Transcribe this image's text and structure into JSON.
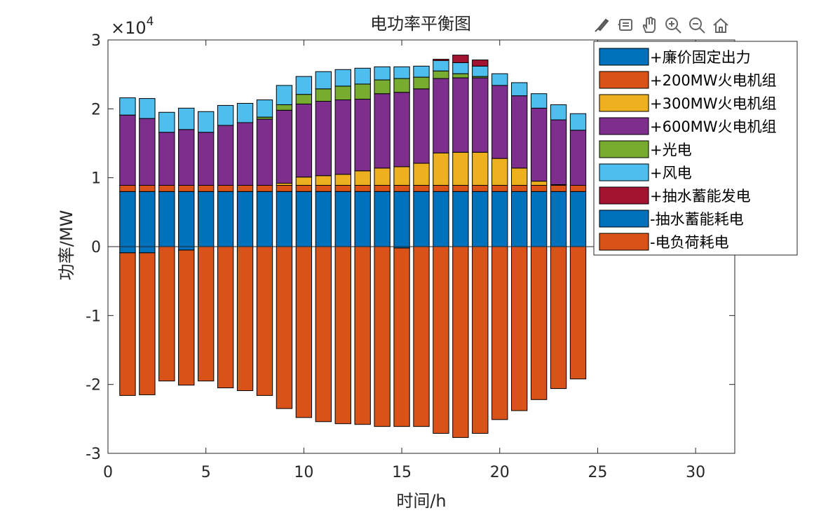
{
  "chart_data": {
    "type": "bar",
    "stacked": true,
    "title": "电功率平衡图",
    "xlabel": "时间/h",
    "ylabel": "功率/MW",
    "exponent_label": "×10",
    "exponent_power": "4",
    "xlim": [
      0,
      32
    ],
    "ylim": [
      -30000,
      30000
    ],
    "xticks": [
      0,
      5,
      10,
      15,
      20,
      25,
      30
    ],
    "yticks": [
      -30000,
      -20000,
      -10000,
      0,
      10000,
      20000,
      30000
    ],
    "xtick_labels": [
      "0",
      "5",
      "10",
      "15",
      "20",
      "25",
      "30"
    ],
    "ytick_labels": [
      "-3",
      "-2",
      "-1",
      "0",
      "1",
      "2",
      "3"
    ],
    "grid": false,
    "legend_position": "top-right",
    "x": [
      1,
      2,
      3,
      4,
      5,
      6,
      7,
      8,
      9,
      10,
      11,
      12,
      13,
      14,
      15,
      16,
      17,
      18,
      19,
      20,
      21,
      22,
      23,
      24
    ],
    "series": [
      {
        "name": "+廉价固定出力",
        "color": "#0072BD",
        "values": [
          8000,
          8000,
          8000,
          8000,
          8000,
          8000,
          8000,
          8000,
          8000,
          8000,
          8000,
          8000,
          8000,
          8000,
          8000,
          8000,
          8000,
          8000,
          8000,
          8000,
          8000,
          8000,
          8000,
          8000
        ]
      },
      {
        "name": "+200MW火电机组",
        "color": "#D95319",
        "values": [
          900,
          900,
          900,
          900,
          900,
          900,
          900,
          900,
          900,
          900,
          900,
          900,
          900,
          900,
          900,
          900,
          900,
          900,
          900,
          900,
          900,
          900,
          900,
          900
        ]
      },
      {
        "name": "+300MW火电机组",
        "color": "#EDB120",
        "values": [
          0,
          0,
          0,
          0,
          0,
          0,
          0,
          0,
          300,
          1200,
          1400,
          1600,
          2100,
          2500,
          2700,
          3200,
          4700,
          4800,
          4800,
          3900,
          2500,
          600,
          100,
          0
        ]
      },
      {
        "name": "+600MW火电机组",
        "color": "#7E2F8E",
        "values": [
          10200,
          9700,
          7700,
          8100,
          7700,
          8700,
          9100,
          9600,
          10600,
          10600,
          10800,
          10800,
          10400,
          10800,
          10800,
          10800,
          10800,
          10800,
          10800,
          10600,
          10500,
          10600,
          9400,
          8000
        ]
      },
      {
        "name": "+光电",
        "color": "#77AC30",
        "values": [
          0,
          0,
          0,
          0,
          0,
          0,
          0,
          300,
          800,
          1400,
          1800,
          2000,
          2200,
          2000,
          2000,
          1700,
          1100,
          600,
          200,
          0,
          0,
          0,
          0,
          0
        ]
      },
      {
        "name": "+风电",
        "color": "#4DBEEE",
        "values": [
          2500,
          2900,
          2900,
          3100,
          3000,
          2900,
          2800,
          2500,
          2800,
          2600,
          2500,
          2400,
          2300,
          1900,
          1700,
          1600,
          1500,
          1600,
          1500,
          1700,
          1900,
          2100,
          2200,
          2400
        ]
      },
      {
        "name": "+抽水蓄能发电",
        "color": "#A2142F",
        "values": [
          0,
          0,
          0,
          0,
          0,
          0,
          0,
          0,
          0,
          0,
          0,
          0,
          0,
          0,
          0,
          0,
          200,
          1100,
          900,
          0,
          0,
          0,
          0,
          0
        ]
      },
      {
        "name": "-抽水蓄能耗电",
        "color": "#0072BD",
        "values": [
          -900,
          -900,
          0,
          -500,
          0,
          0,
          0,
          0,
          0,
          0,
          0,
          0,
          0,
          0,
          -200,
          0,
          0,
          0,
          0,
          0,
          0,
          0,
          0,
          0
        ]
      },
      {
        "name": "-电负荷耗电",
        "color": "#D95319",
        "values": [
          -20700,
          -20600,
          -19500,
          -19600,
          -19500,
          -20500,
          -20900,
          -21600,
          -23500,
          -24800,
          -25400,
          -25700,
          -25800,
          -26100,
          -25900,
          -26100,
          -27100,
          -27700,
          -27100,
          -25100,
          -23800,
          -22200,
          -20600,
          -19200
        ]
      }
    ]
  }
}
